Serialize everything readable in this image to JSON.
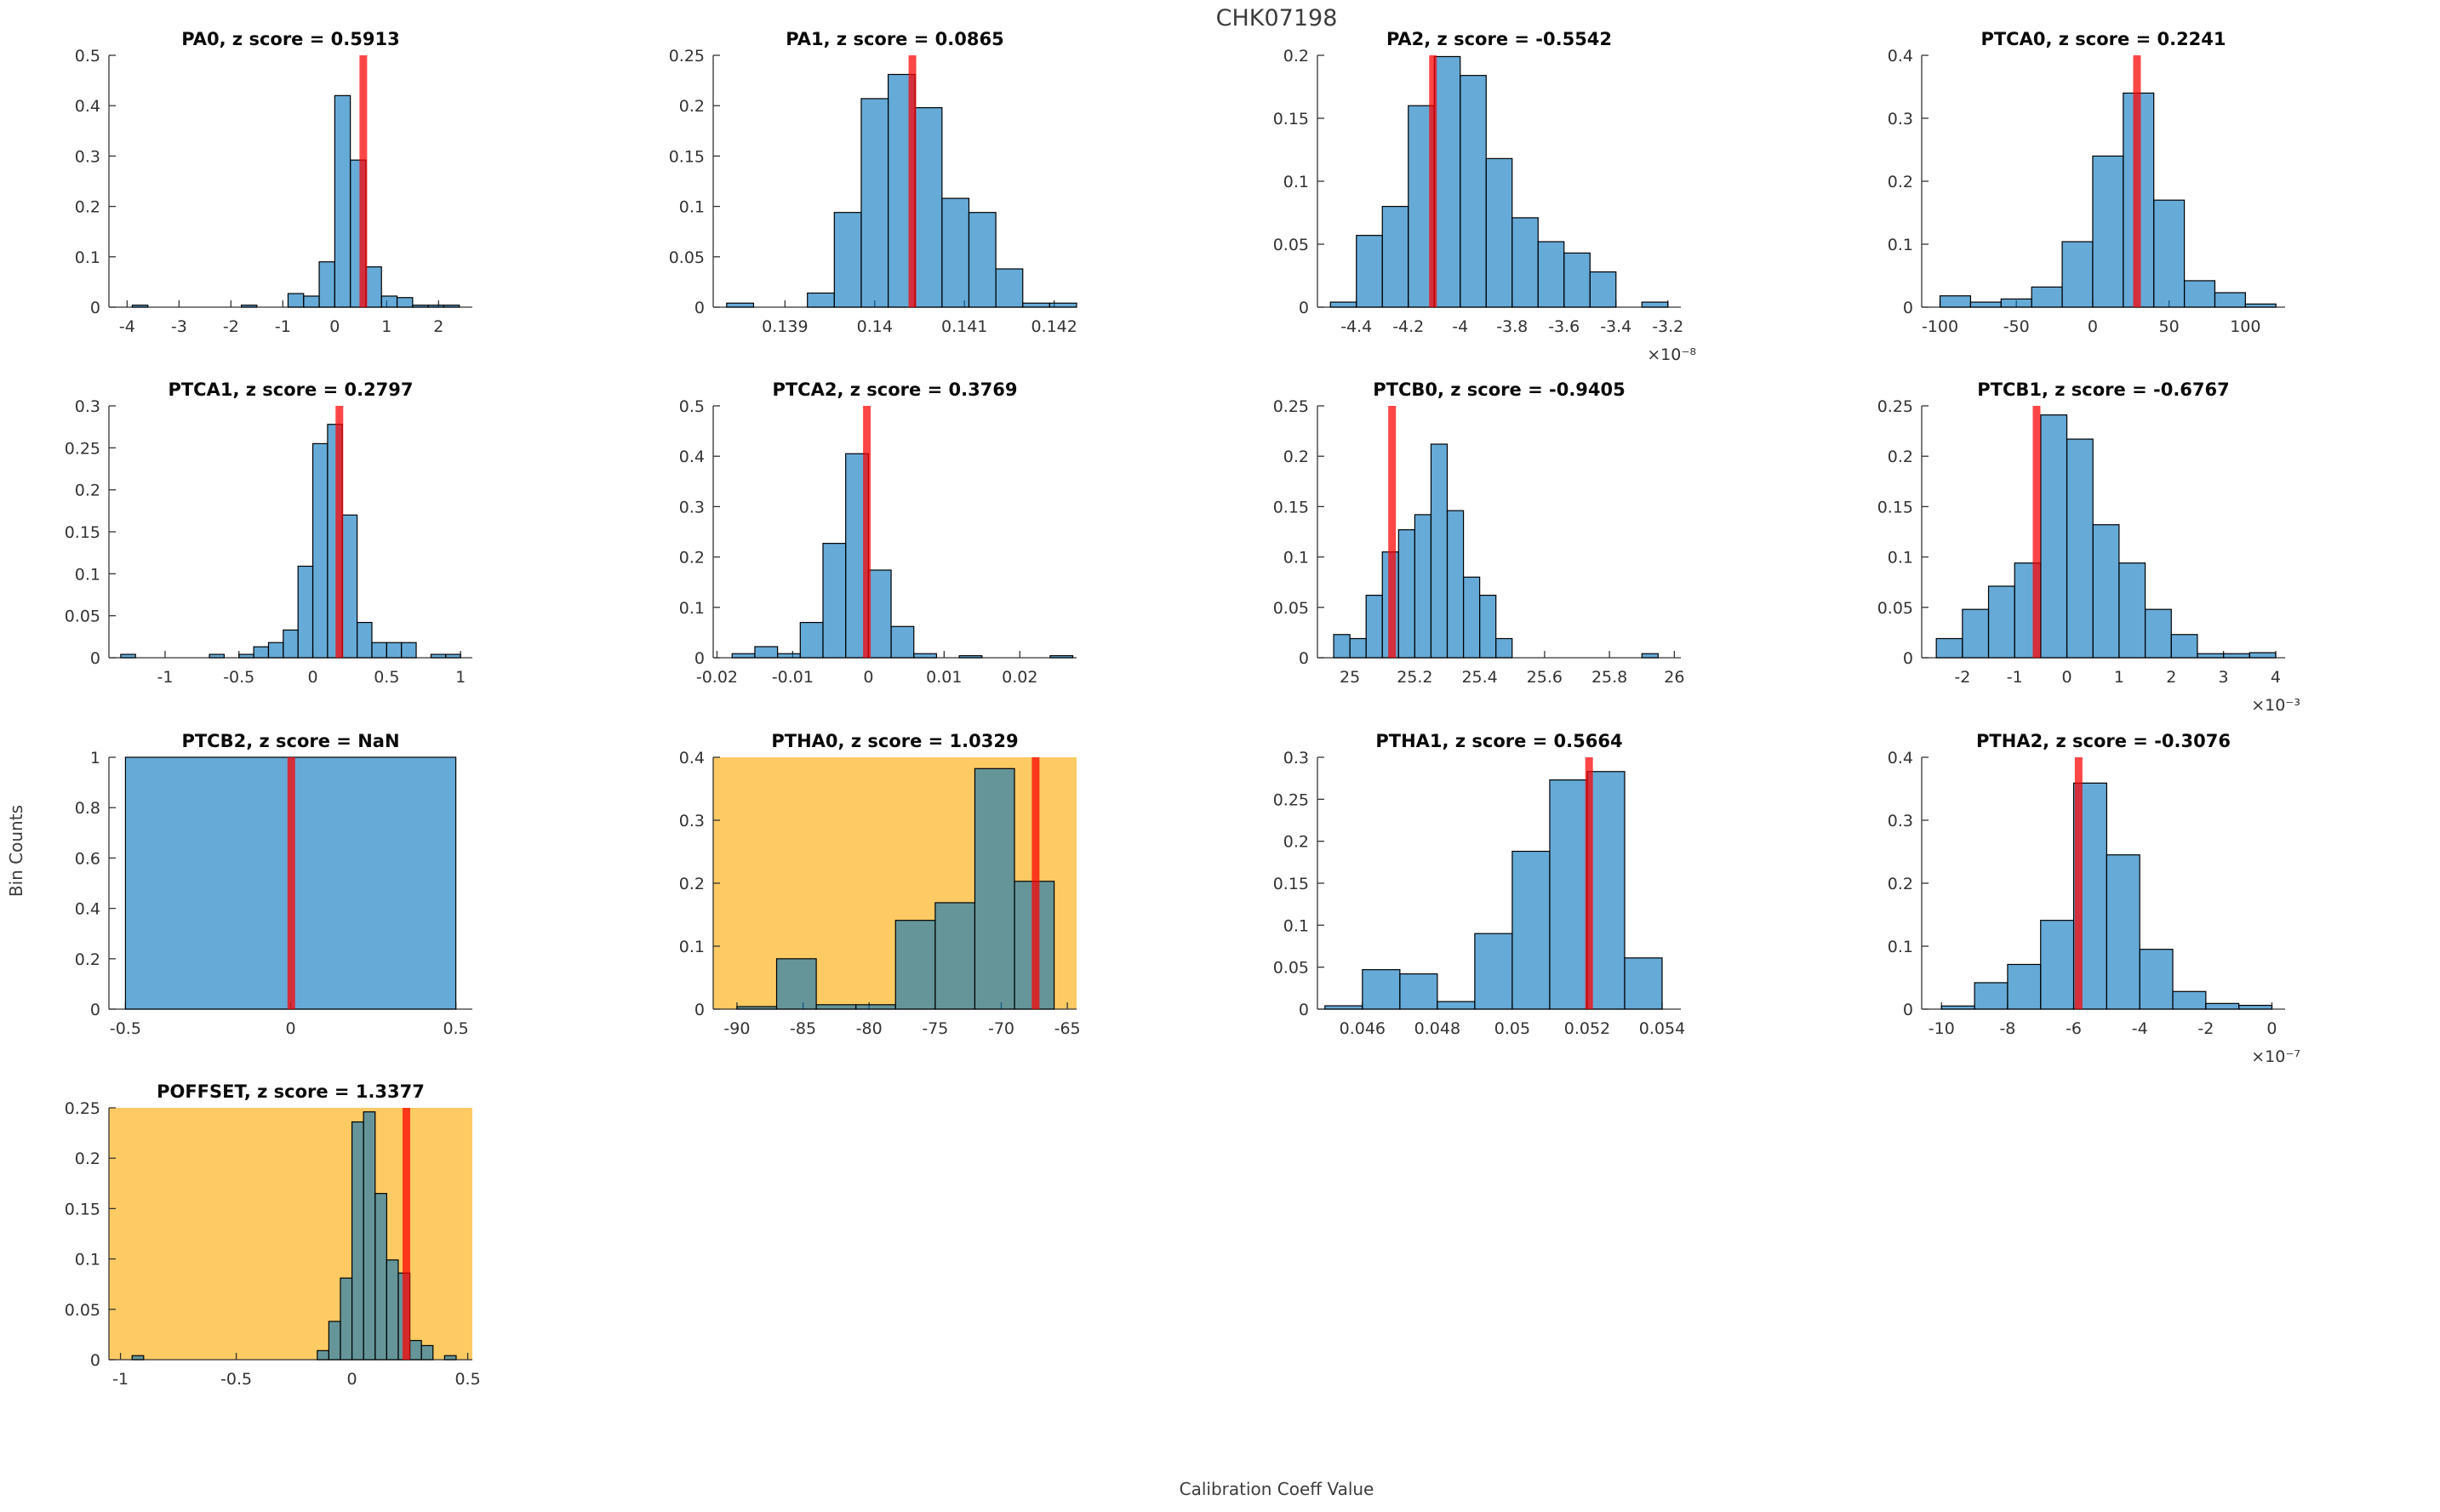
{
  "figure": {
    "title": "CHK07198",
    "xlabel": "Calibration Coeff Value",
    "ylabel": "Bin Counts"
  },
  "colors": {
    "bar_face": "#0072BD",
    "bar_alpha": 0.6,
    "bar_edge": "#000000",
    "marker_line": "#FF0000",
    "marker_alpha": 0.72,
    "highlight_bg": "#FDCA64",
    "normal_bg": "#FFFFFF",
    "axis": "#333333",
    "subplot_title_color": "#0a0a0a"
  },
  "chart_data": [
    {
      "type": "bar",
      "name": "PA0",
      "title": "PA0, z score = 0.5913",
      "z_score": 0.5913,
      "highlighted": false,
      "row": 0,
      "col": 0,
      "xlim": [
        -4.35,
        2.65
      ],
      "ylim": [
        0,
        0.5
      ],
      "xticks": [
        {
          "v": -4,
          "l": "-4"
        },
        {
          "v": -3,
          "l": "-3"
        },
        {
          "v": -2,
          "l": "-2"
        },
        {
          "v": -1,
          "l": "-1"
        },
        {
          "v": 0,
          "l": "0"
        },
        {
          "v": 1,
          "l": "1"
        },
        {
          "v": 2,
          "l": "2"
        }
      ],
      "yticks": [
        {
          "v": 0,
          "l": "0"
        },
        {
          "v": 0.1,
          "l": "0.1"
        },
        {
          "v": 0.2,
          "l": "0.2"
        },
        {
          "v": 0.3,
          "l": "0.3"
        },
        {
          "v": 0.4,
          "l": "0.4"
        },
        {
          "v": 0.5,
          "l": "0.5"
        }
      ],
      "x_exponent": "",
      "bin_start": -3.9,
      "bin_width": 0.3,
      "heights": [
        0.004,
        0,
        0,
        0,
        0,
        0,
        0,
        0.004,
        0,
        0,
        0.027,
        0.022,
        0.09,
        0.42,
        0.292,
        0.08,
        0.022,
        0.019,
        0.004,
        0.004,
        0.004
      ],
      "marker_x": 0.55
    },
    {
      "type": "bar",
      "name": "PA1",
      "title": "PA1, z score = 0.0865",
      "z_score": 0.0865,
      "highlighted": false,
      "row": 0,
      "col": 1,
      "xlim": [
        0.1382,
        0.14225
      ],
      "ylim": [
        0,
        0.25
      ],
      "xticks": [
        {
          "v": 0.139,
          "l": "0.139"
        },
        {
          "v": 0.14,
          "l": "0.14"
        },
        {
          "v": 0.141,
          "l": "0.141"
        },
        {
          "v": 0.142,
          "l": "0.142"
        }
      ],
      "yticks": [
        {
          "v": 0,
          "l": "0"
        },
        {
          "v": 0.05,
          "l": "0.05"
        },
        {
          "v": 0.1,
          "l": "0.1"
        },
        {
          "v": 0.15,
          "l": "0.15"
        },
        {
          "v": 0.2,
          "l": "0.2"
        },
        {
          "v": 0.25,
          "l": "0.25"
        }
      ],
      "x_exponent": "",
      "bin_start": 0.13835,
      "bin_width": 0.0003,
      "heights": [
        0.004,
        0,
        0,
        0.014,
        0.094,
        0.207,
        0.231,
        0.198,
        0.108,
        0.094,
        0.038,
        0.004,
        0.004
      ],
      "marker_x": 0.14042
    },
    {
      "type": "bar",
      "name": "PA2",
      "title": "PA2, z score = -0.5542",
      "z_score": -0.5542,
      "highlighted": false,
      "row": 0,
      "col": 2,
      "xlim": [
        -4.55,
        -3.15
      ],
      "ylim": [
        0,
        0.2
      ],
      "xticks": [
        {
          "v": -4.4,
          "l": "-4.4"
        },
        {
          "v": -4.2,
          "l": "-4.2"
        },
        {
          "v": -4,
          "l": "-4"
        },
        {
          "v": -3.8,
          "l": "-3.8"
        },
        {
          "v": -3.6,
          "l": "-3.6"
        },
        {
          "v": -3.4,
          "l": "-3.4"
        },
        {
          "v": -3.2,
          "l": "-3.2"
        }
      ],
      "yticks": [
        {
          "v": 0,
          "l": "0"
        },
        {
          "v": 0.05,
          "l": "0.05"
        },
        {
          "v": 0.1,
          "l": "0.1"
        },
        {
          "v": 0.15,
          "l": "0.15"
        },
        {
          "v": 0.2,
          "l": "0.2"
        }
      ],
      "x_exponent": "×10⁻⁸",
      "bin_start": -4.5,
      "bin_width": 0.1,
      "heights": [
        0.004,
        0.057,
        0.08,
        0.16,
        0.199,
        0.184,
        0.118,
        0.071,
        0.052,
        0.043,
        0.028,
        0,
        0.004
      ],
      "marker_x": -4.105
    },
    {
      "type": "bar",
      "name": "PTCA0",
      "title": "PTCA0, z score = 0.2241",
      "z_score": 0.2241,
      "highlighted": false,
      "row": 0,
      "col": 3,
      "xlim": [
        -112,
        126
      ],
      "ylim": [
        0,
        0.4
      ],
      "xticks": [
        {
          "v": -100,
          "l": "-100"
        },
        {
          "v": -50,
          "l": "-50"
        },
        {
          "v": 0,
          "l": "0"
        },
        {
          "v": 50,
          "l": "50"
        },
        {
          "v": 100,
          "l": "100"
        }
      ],
      "yticks": [
        {
          "v": 0,
          "l": "0"
        },
        {
          "v": 0.1,
          "l": "0.1"
        },
        {
          "v": 0.2,
          "l": "0.2"
        },
        {
          "v": 0.3,
          "l": "0.3"
        },
        {
          "v": 0.4,
          "l": "0.4"
        }
      ],
      "x_exponent": "",
      "bin_start": -100,
      "bin_width": 20,
      "heights": [
        0.018,
        0.008,
        0.013,
        0.032,
        0.104,
        0.24,
        0.34,
        0.17,
        0.042,
        0.023,
        0.005
      ],
      "marker_x": 29
    },
    {
      "type": "bar",
      "name": "PTCA1",
      "title": "PTCA1, z score = 0.2797",
      "z_score": 0.2797,
      "highlighted": false,
      "row": 1,
      "col": 0,
      "xlim": [
        -1.38,
        1.08
      ],
      "ylim": [
        0,
        0.3
      ],
      "xticks": [
        {
          "v": -1,
          "l": "-1"
        },
        {
          "v": -0.5,
          "l": "-0.5"
        },
        {
          "v": 0,
          "l": "0"
        },
        {
          "v": 0.5,
          "l": "0.5"
        },
        {
          "v": 1,
          "l": "1"
        }
      ],
      "yticks": [
        {
          "v": 0,
          "l": "0"
        },
        {
          "v": 0.05,
          "l": "0.05"
        },
        {
          "v": 0.1,
          "l": "0.1"
        },
        {
          "v": 0.15,
          "l": "0.15"
        },
        {
          "v": 0.2,
          "l": "0.2"
        },
        {
          "v": 0.25,
          "l": "0.25"
        },
        {
          "v": 0.3,
          "l": "0.3"
        }
      ],
      "x_exponent": "",
      "bin_start": -1.3,
      "bin_width": 0.1,
      "heights": [
        0.004,
        0,
        0,
        0,
        0,
        0,
        0.004,
        0,
        0.004,
        0.013,
        0.018,
        0.033,
        0.109,
        0.255,
        0.278,
        0.17,
        0.042,
        0.018,
        0.018,
        0.018,
        0,
        0.004,
        0.004
      ],
      "marker_x": 0.18
    },
    {
      "type": "bar",
      "name": "PTCA2",
      "title": "PTCA2, z score = 0.3769",
      "z_score": 0.3769,
      "highlighted": false,
      "row": 1,
      "col": 1,
      "xlim": [
        -0.0205,
        0.0275
      ],
      "ylim": [
        0,
        0.5
      ],
      "xticks": [
        {
          "v": -0.02,
          "l": "-0.02"
        },
        {
          "v": -0.01,
          "l": "-0.01"
        },
        {
          "v": 0,
          "l": "0"
        },
        {
          "v": 0.01,
          "l": "0.01"
        },
        {
          "v": 0.02,
          "l": "0.02"
        }
      ],
      "yticks": [
        {
          "v": 0,
          "l": "0"
        },
        {
          "v": 0.1,
          "l": "0.1"
        },
        {
          "v": 0.2,
          "l": "0.2"
        },
        {
          "v": 0.3,
          "l": "0.3"
        },
        {
          "v": 0.4,
          "l": "0.4"
        },
        {
          "v": 0.5,
          "l": "0.5"
        }
      ],
      "x_exponent": "",
      "bin_start": -0.018,
      "bin_width": 0.003,
      "heights": [
        0.008,
        0.022,
        0.008,
        0.07,
        0.227,
        0.405,
        0.174,
        0.062,
        0.008,
        0,
        0.004,
        0,
        0,
        0,
        0.004
      ],
      "marker_x": -0.0002
    },
    {
      "type": "bar",
      "name": "PTCB0",
      "title": "PTCB0, z score = -0.9405",
      "z_score": -0.9405,
      "highlighted": false,
      "row": 1,
      "col": 2,
      "xlim": [
        24.9,
        26.02
      ],
      "ylim": [
        0,
        0.25
      ],
      "xticks": [
        {
          "v": 25,
          "l": "25"
        },
        {
          "v": 25.2,
          "l": "25.2"
        },
        {
          "v": 25.4,
          "l": "25.4"
        },
        {
          "v": 25.6,
          "l": "25.6"
        },
        {
          "v": 25.8,
          "l": "25.8"
        },
        {
          "v": 26,
          "l": "26"
        }
      ],
      "yticks": [
        {
          "v": 0,
          "l": "0"
        },
        {
          "v": 0.05,
          "l": "0.05"
        },
        {
          "v": 0.1,
          "l": "0.1"
        },
        {
          "v": 0.15,
          "l": "0.15"
        },
        {
          "v": 0.2,
          "l": "0.2"
        },
        {
          "v": 0.25,
          "l": "0.25"
        }
      ],
      "x_exponent": "",
      "bin_start": 24.95,
      "bin_width": 0.05,
      "heights": [
        0.023,
        0.019,
        0.062,
        0.105,
        0.127,
        0.142,
        0.212,
        0.146,
        0.08,
        0.062,
        0.019,
        0,
        0,
        0,
        0,
        0,
        0,
        0,
        0,
        0.004
      ],
      "marker_x": 25.13
    },
    {
      "type": "bar",
      "name": "PTCB1",
      "title": "PTCB1, z score = -0.6767",
      "z_score": -0.6767,
      "highlighted": false,
      "row": 1,
      "col": 3,
      "xlim": [
        -2.78,
        4.18
      ],
      "ylim": [
        0,
        0.25
      ],
      "xticks": [
        {
          "v": -2,
          "l": "-2"
        },
        {
          "v": -1,
          "l": "-1"
        },
        {
          "v": 0,
          "l": "0"
        },
        {
          "v": 1,
          "l": "1"
        },
        {
          "v": 2,
          "l": "2"
        },
        {
          "v": 3,
          "l": "3"
        },
        {
          "v": 4,
          "l": "4"
        }
      ],
      "yticks": [
        {
          "v": 0,
          "l": "0"
        },
        {
          "v": 0.05,
          "l": "0.05"
        },
        {
          "v": 0.1,
          "l": "0.1"
        },
        {
          "v": 0.15,
          "l": "0.15"
        },
        {
          "v": 0.2,
          "l": "0.2"
        },
        {
          "v": 0.25,
          "l": "0.25"
        }
      ],
      "x_exponent": "×10⁻³",
      "bin_start": -2.5,
      "bin_width": 0.5,
      "heights": [
        0.019,
        0.048,
        0.071,
        0.094,
        0.241,
        0.217,
        0.132,
        0.094,
        0.048,
        0.023,
        0.004,
        0.004,
        0.005
      ],
      "marker_x": -0.58
    },
    {
      "type": "bar",
      "name": "PTCB2",
      "title": "PTCB2, z score = NaN",
      "z_score": "NaN",
      "highlighted": false,
      "row": 2,
      "col": 0,
      "xlim": [
        -0.55,
        0.55
      ],
      "ylim": [
        0,
        1
      ],
      "xticks": [
        {
          "v": -0.5,
          "l": "-0.5"
        },
        {
          "v": 0,
          "l": "0"
        },
        {
          "v": 0.5,
          "l": "0.5"
        }
      ],
      "yticks": [
        {
          "v": 0,
          "l": "0"
        },
        {
          "v": 0.2,
          "l": "0.2"
        },
        {
          "v": 0.4,
          "l": "0.4"
        },
        {
          "v": 0.6,
          "l": "0.6"
        },
        {
          "v": 0.8,
          "l": "0.8"
        },
        {
          "v": 1,
          "l": "1"
        }
      ],
      "x_exponent": "",
      "bin_start": -0.5,
      "bin_width": 1,
      "heights": [
        1
      ],
      "marker_x": 0.002
    },
    {
      "type": "bar",
      "name": "PTHA0",
      "title": "PTHA0, z score = 1.0329",
      "z_score": 1.0329,
      "highlighted": true,
      "row": 2,
      "col": 1,
      "xlim": [
        -91.8,
        -64.3
      ],
      "ylim": [
        0,
        0.4
      ],
      "xticks": [
        {
          "v": -90,
          "l": "-90"
        },
        {
          "v": -85,
          "l": "-85"
        },
        {
          "v": -80,
          "l": "-80"
        },
        {
          "v": -75,
          "l": "-75"
        },
        {
          "v": -70,
          "l": "-70"
        },
        {
          "v": -65,
          "l": "-65"
        }
      ],
      "yticks": [
        {
          "v": 0,
          "l": "0"
        },
        {
          "v": 0.1,
          "l": "0.1"
        },
        {
          "v": 0.2,
          "l": "0.2"
        },
        {
          "v": 0.3,
          "l": "0.3"
        },
        {
          "v": 0.4,
          "l": "0.4"
        }
      ],
      "x_exponent": "",
      "bin_start": -90,
      "bin_width": 3,
      "heights": [
        0.004,
        0.08,
        0.007,
        0.007,
        0.141,
        0.169,
        0.382,
        0.203
      ],
      "marker_x": -67.4
    },
    {
      "type": "bar",
      "name": "PTHA1",
      "title": "PTHA1, z score = 0.5664",
      "z_score": 0.5664,
      "highlighted": false,
      "row": 2,
      "col": 2,
      "xlim": [
        0.0448,
        0.0545
      ],
      "ylim": [
        0,
        0.3
      ],
      "xticks": [
        {
          "v": 0.046,
          "l": "0.046"
        },
        {
          "v": 0.048,
          "l": "0.048"
        },
        {
          "v": 0.05,
          "l": "0.05"
        },
        {
          "v": 0.052,
          "l": "0.052"
        },
        {
          "v": 0.054,
          "l": "0.054"
        }
      ],
      "yticks": [
        {
          "v": 0,
          "l": "0"
        },
        {
          "v": 0.05,
          "l": "0.05"
        },
        {
          "v": 0.1,
          "l": "0.1"
        },
        {
          "v": 0.15,
          "l": "0.15"
        },
        {
          "v": 0.2,
          "l": "0.2"
        },
        {
          "v": 0.25,
          "l": "0.25"
        },
        {
          "v": 0.3,
          "l": "0.3"
        }
      ],
      "x_exponent": "",
      "bin_start": 0.045,
      "bin_width": 0.001,
      "heights": [
        0.004,
        0.047,
        0.042,
        0.009,
        0.09,
        0.188,
        0.273,
        0.283,
        0.061
      ],
      "marker_x": 0.05205
    },
    {
      "type": "bar",
      "name": "PTHA2",
      "title": "PTHA2, z score = -0.3076",
      "z_score": -0.3076,
      "highlighted": false,
      "row": 2,
      "col": 3,
      "xlim": [
        -10.6,
        0.4
      ],
      "ylim": [
        0,
        0.4
      ],
      "xticks": [
        {
          "v": -10,
          "l": "-10"
        },
        {
          "v": -8,
          "l": "-8"
        },
        {
          "v": -6,
          "l": "-6"
        },
        {
          "v": -4,
          "l": "-4"
        },
        {
          "v": -2,
          "l": "-2"
        },
        {
          "v": 0,
          "l": "0"
        }
      ],
      "yticks": [
        {
          "v": 0,
          "l": "0"
        },
        {
          "v": 0.1,
          "l": "0.1"
        },
        {
          "v": 0.2,
          "l": "0.2"
        },
        {
          "v": 0.3,
          "l": "0.3"
        },
        {
          "v": 0.4,
          "l": "0.4"
        }
      ],
      "x_exponent": "×10⁻⁷",
      "bin_start": -10,
      "bin_width": 1,
      "heights": [
        0.005,
        0.042,
        0.071,
        0.141,
        0.359,
        0.245,
        0.095,
        0.028,
        0.009,
        0.006
      ],
      "marker_x": -5.85
    },
    {
      "type": "bar",
      "name": "POFFSET",
      "title": "POFFSET, z score = 1.3377",
      "z_score": 1.3377,
      "highlighted": true,
      "row": 3,
      "col": 0,
      "xlim": [
        -1.05,
        0.52
      ],
      "ylim": [
        0,
        0.25
      ],
      "xticks": [
        {
          "v": -1,
          "l": "-1"
        },
        {
          "v": -0.5,
          "l": "-0.5"
        },
        {
          "v": 0,
          "l": "0"
        },
        {
          "v": 0.5,
          "l": "0.5"
        }
      ],
      "yticks": [
        {
          "v": 0,
          "l": "0"
        },
        {
          "v": 0.05,
          "l": "0.05"
        },
        {
          "v": 0.1,
          "l": "0.1"
        },
        {
          "v": 0.15,
          "l": "0.15"
        },
        {
          "v": 0.2,
          "l": "0.2"
        },
        {
          "v": 0.25,
          "l": "0.25"
        }
      ],
      "x_exponent": "",
      "bin_start": -0.95,
      "bin_width": 0.05,
      "heights": [
        0.004,
        0,
        0,
        0,
        0,
        0,
        0,
        0,
        0,
        0,
        0,
        0,
        0,
        0,
        0,
        0,
        0.009,
        0.038,
        0.081,
        0.236,
        0.246,
        0.165,
        0.099,
        0.086,
        0.019,
        0.014,
        0,
        0.004
      ],
      "marker_x": 0.235
    }
  ]
}
